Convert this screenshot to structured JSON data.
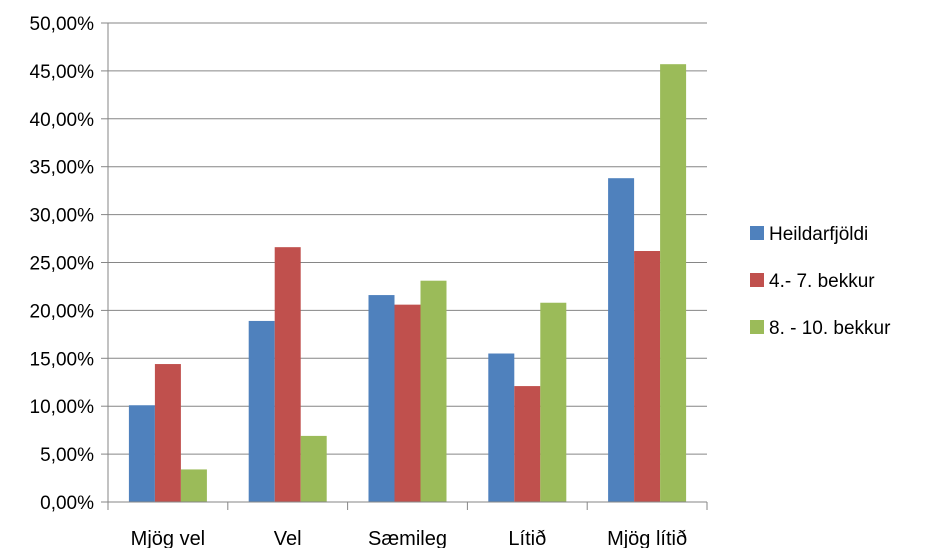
{
  "chart_data": {
    "type": "bar",
    "categories": [
      "Mjög vel",
      "Vel",
      "Sæmileg",
      "Lítið",
      "Mjög lítið"
    ],
    "series": [
      {
        "name": "Heildarfjöldi",
        "color": "#4F81BD",
        "values": [
          10.1,
          18.9,
          21.6,
          15.5,
          33.8
        ]
      },
      {
        "name": "4.- 7. bekkur",
        "color": "#C0504D",
        "values": [
          14.4,
          26.6,
          20.6,
          12.1,
          26.2
        ]
      },
      {
        "name": "8. - 10. bekkur",
        "color": "#9BBB59",
        "values": [
          3.4,
          6.9,
          23.1,
          20.8,
          45.7
        ]
      }
    ],
    "ylim": [
      0,
      50
    ],
    "yticks": [
      "0,00%",
      "5,00%",
      "10,00%",
      "15,00%",
      "20,00%",
      "25,00%",
      "30,00%",
      "35,00%",
      "40,00%",
      "45,00%",
      "50,00%"
    ],
    "grid": true,
    "legend_position": "right"
  }
}
